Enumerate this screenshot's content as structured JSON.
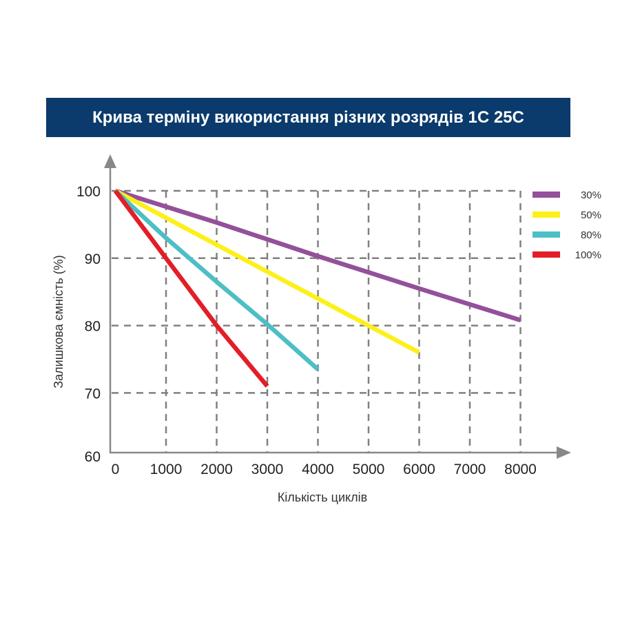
{
  "chart_data": {
    "type": "line",
    "title": "Крива терміну використання різних розрядів 1С 25С",
    "xlabel": "Кількість циклів",
    "ylabel": "Залишкова ємність (%)",
    "xlim": [
      0,
      8000
    ],
    "ylim": [
      60,
      100
    ],
    "xticks": [
      "0",
      "1000",
      "2000",
      "3000",
      "4000",
      "5000",
      "6000",
      "7000",
      "8000"
    ],
    "yticks": [
      "60",
      "70",
      "80",
      "90",
      "100"
    ],
    "grid": true,
    "legend_position": "top-right",
    "series": [
      {
        "name": "30%",
        "color": "#94509a",
        "x": [
          0,
          2000,
          4000,
          6000,
          8000
        ],
        "y": [
          100,
          95.3,
          90.3,
          85.5,
          80.8
        ]
      },
      {
        "name": "50%",
        "color": "#fdf01a",
        "x": [
          0,
          1000,
          2000,
          3000,
          4000,
          5000,
          6000
        ],
        "y": [
          100,
          96,
          92,
          88,
          84,
          80,
          76
        ]
      },
      {
        "name": "80%",
        "color": "#4cbfc6",
        "x": [
          0,
          1000,
          2000,
          3000,
          4000
        ],
        "y": [
          100,
          93,
          86.5,
          80.2,
          73.5
        ]
      },
      {
        "name": "100%",
        "color": "#e31e26",
        "x": [
          0,
          1000,
          2000,
          3000
        ],
        "y": [
          100,
          90,
          80,
          71
        ]
      }
    ]
  }
}
